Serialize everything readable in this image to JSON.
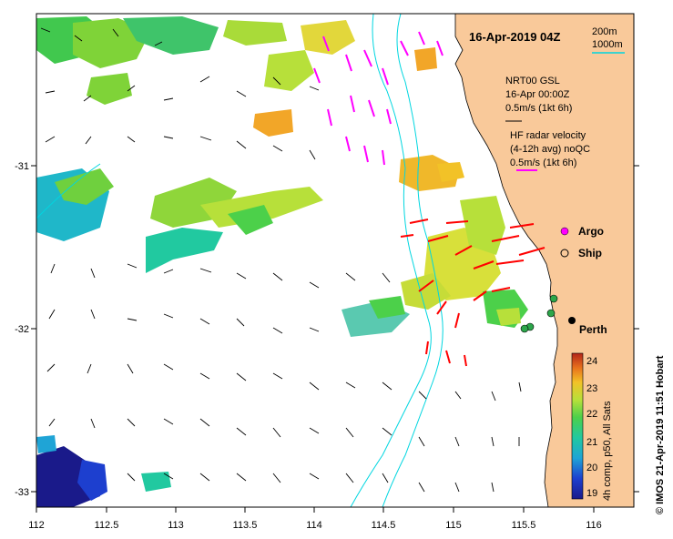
{
  "map_title": "16-Apr-2019 04Z",
  "depth_legend": {
    "line1": "200m",
    "line2": "1000m",
    "color": "#00d6e0"
  },
  "model_legend": {
    "line1": "NRT00 GSL",
    "line2": "16-Apr 00:00Z",
    "line3": "0.5m/s (1kt 6h)"
  },
  "radar_legend": {
    "line1": "HF radar velocity",
    "line2": "(4-12h avg) noQC",
    "line3": "0.5m/s (1kt 6h)"
  },
  "markers": {
    "argo": "Argo",
    "ship": "Ship",
    "city": "Perth"
  },
  "x_ticks": [
    "112",
    "112.5",
    "113",
    "113.5",
    "114",
    "114.5",
    "115",
    "115.5",
    "116"
  ],
  "y_ticks": [
    "-31",
    "-32",
    "-33"
  ],
  "colorbar": {
    "ticks": [
      "24",
      "23",
      "22",
      "21",
      "20",
      "19"
    ],
    "caption": "4h comp, p50, All Sats"
  },
  "credit": "© IMOS 21-Apr-2019 11:51 Hobart",
  "colors": {
    "land": "#f9c99a",
    "radar": "#ff0000",
    "model": "#ff00ff",
    "contour": "#00d6e0"
  }
}
